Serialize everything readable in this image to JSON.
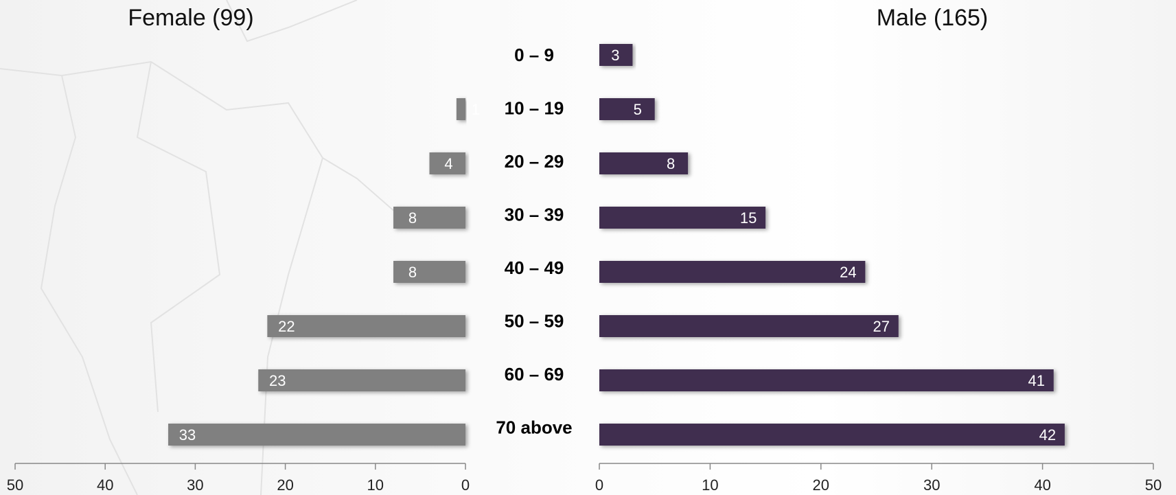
{
  "chart_data": [
    {
      "type": "bar",
      "title": "Female (99)",
      "color": "#808080",
      "categories": [
        "0 – 9",
        "10 – 19",
        "20 – 29",
        "30 – 39",
        "40 – 49",
        "50 – 59",
        "60 – 69",
        "70 above"
      ],
      "values": [
        null,
        1,
        4,
        8,
        8,
        22,
        23,
        33
      ],
      "xlim": [
        50,
        0
      ],
      "xticks": [
        50,
        40,
        30,
        20,
        10,
        0
      ]
    },
    {
      "type": "bar",
      "title": "Male (165)",
      "color": "#3f2f4f",
      "values": [
        3,
        5,
        8,
        15,
        24,
        27,
        41,
        42
      ],
      "xlim": [
        0,
        50
      ],
      "xticks": [
        0,
        10,
        20,
        30,
        40,
        50
      ]
    }
  ]
}
